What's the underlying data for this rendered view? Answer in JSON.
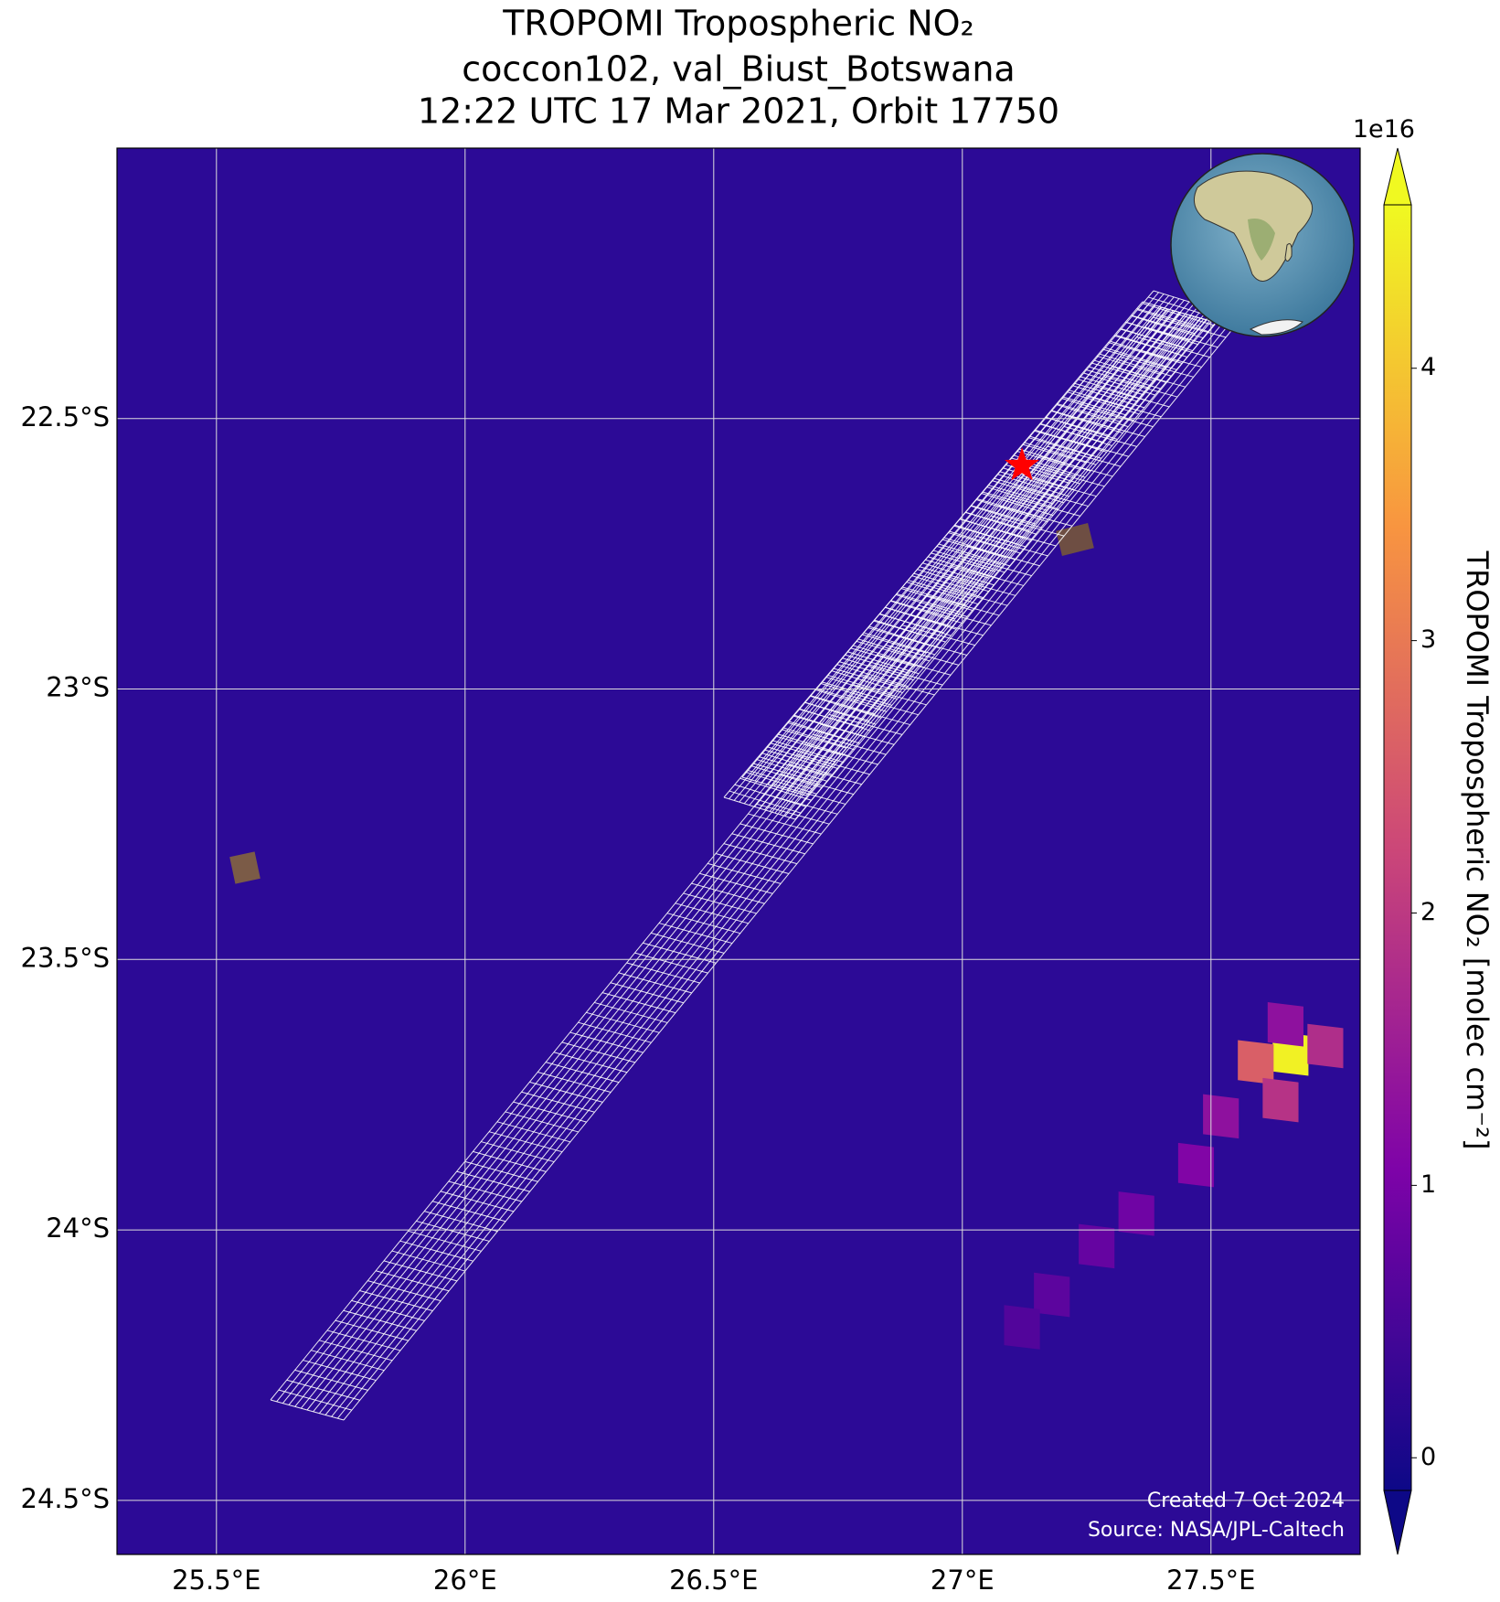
{
  "chart_data": {
    "type": "map",
    "title": [
      "TROPOMI Tropospheric NO₂",
      "coccon102, val_Biust_Botswana",
      "12:22 UTC 17 Mar 2021, Orbit 17750"
    ],
    "xlim": [
      25.3,
      27.8
    ],
    "ylim": [
      -24.6,
      -22.0
    ],
    "xticks": [
      {
        "value": 25.5,
        "label": "25.5°E"
      },
      {
        "value": 26,
        "label": "26°E"
      },
      {
        "value": 26.5,
        "label": "26.5°E"
      },
      {
        "value": 27,
        "label": "27°E"
      },
      {
        "value": 27.5,
        "label": "27.5°E"
      }
    ],
    "yticks": [
      {
        "value": -22.5,
        "label": "22.5°S"
      },
      {
        "value": -23,
        "label": "23°S"
      },
      {
        "value": -23.5,
        "label": "23.5°S"
      },
      {
        "value": -24,
        "label": "24°S"
      },
      {
        "value": -24.5,
        "label": "24.5°S"
      }
    ],
    "grid": true,
    "colormap": "plasma",
    "colorbar": {
      "label": "TROPOMI Tropospheric NO₂ [molec cm⁻²]",
      "exponent": "1e16",
      "lim": [
        -0.12,
        4.6
      ],
      "ticks": [
        0,
        1,
        2,
        3,
        4
      ]
    },
    "site": {
      "lon": 27.12,
      "lat": -22.587
    },
    "pixels": [
      {
        "lon": 27.66,
        "lat": -23.674,
        "value": 4.5
      },
      {
        "lon": 27.59,
        "lat": -23.69,
        "value": 2.6
      },
      {
        "lon": 27.73,
        "lat": -23.66,
        "value": 1.8
      },
      {
        "lon": 27.64,
        "lat": -23.76,
        "value": 1.9
      },
      {
        "lon": 27.65,
        "lat": -23.62,
        "value": 1.3
      },
      {
        "lon": 27.52,
        "lat": -23.79,
        "value": 1.3
      },
      {
        "lon": 27.47,
        "lat": -23.88,
        "value": 1.1
      },
      {
        "lon": 27.35,
        "lat": -23.97,
        "value": 0.9
      },
      {
        "lon": 27.27,
        "lat": -24.03,
        "value": 0.8
      },
      {
        "lon": 27.18,
        "lat": -24.12,
        "value": 0.7
      },
      {
        "lon": 27.12,
        "lat": -24.18,
        "value": 0.6
      }
    ],
    "annotations": [
      "Created 7 Oct 2024",
      "Source: NASA/JPL-Caltech"
    ]
  }
}
